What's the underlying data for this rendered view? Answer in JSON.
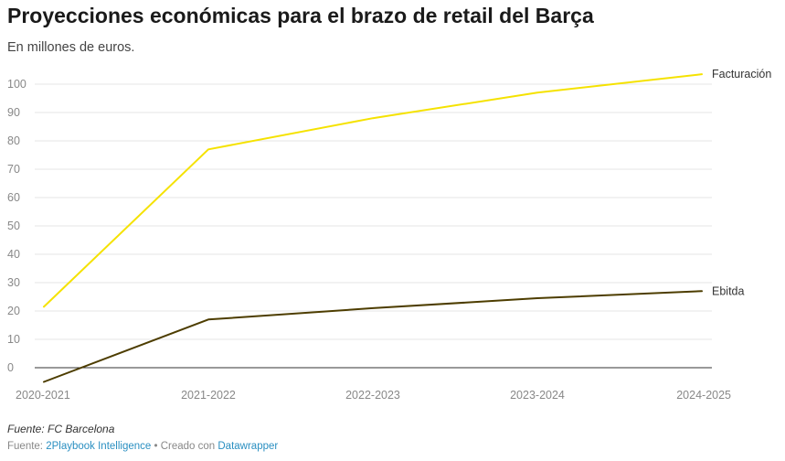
{
  "header": {
    "title": "Proyecciones económicas para el brazo de retail del Barça",
    "subtitle": "En millones de euros."
  },
  "footer": {
    "note": "Fuente: FC Barcelona",
    "credit_prefix": "Fuente: ",
    "credit_source": "2Playbook Intelligence",
    "credit_separator": " • Creado con ",
    "credit_tool": "Datawrapper"
  },
  "colors": {
    "facturacion": "#f5e200",
    "ebitda": "#4d3d00",
    "grid": "#e5e5e5",
    "zero_line": "#333333"
  },
  "chart_data": {
    "type": "line",
    "title": "Proyecciones económicas para el brazo de retail del Barça",
    "subtitle": "En millones de euros.",
    "xlabel": "",
    "ylabel": "",
    "categories": [
      "2020-2021",
      "2021-2022",
      "2022-2023",
      "2023-2024",
      "2024-2025"
    ],
    "ylim": [
      -5,
      105
    ],
    "yticks": [
      0,
      10,
      20,
      30,
      40,
      50,
      60,
      70,
      80,
      90,
      100
    ],
    "grid": true,
    "legend": "inline-right",
    "series": [
      {
        "name": "Facturación",
        "color": "#f5e200",
        "values": [
          21.5,
          77,
          88,
          97,
          103.5
        ]
      },
      {
        "name": "Ebitda",
        "color": "#4d3d00",
        "values": [
          -5,
          17,
          21,
          24.5,
          27
        ]
      }
    ]
  }
}
